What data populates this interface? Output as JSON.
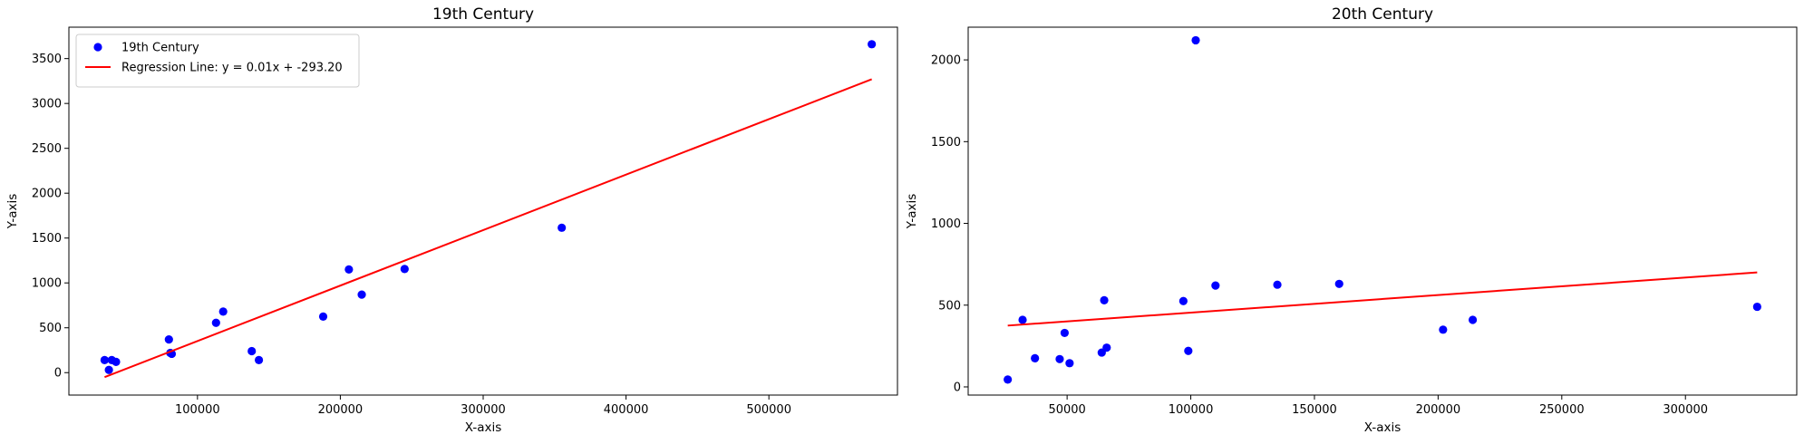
{
  "chart_data": [
    {
      "type": "scatter",
      "title": "19th Century",
      "xlabel": "X-axis",
      "ylabel": "Y-axis",
      "xlim": [
        10000,
        590000
      ],
      "ylim": [
        -250,
        3850
      ],
      "xticks": [
        100000,
        200000,
        300000,
        400000,
        500000
      ],
      "yticks": [
        0,
        500,
        1000,
        1500,
        2000,
        2500,
        3000,
        3500
      ],
      "grid": false,
      "legend_position": "top-left",
      "series": [
        {
          "name": "19th Century",
          "kind": "scatter",
          "color": "#0000ff",
          "points": [
            [
              35000,
              140
            ],
            [
              40000,
              140
            ],
            [
              43000,
              120
            ],
            [
              38000,
              30
            ],
            [
              80000,
              370
            ],
            [
              81000,
              220
            ],
            [
              82000,
              210
            ],
            [
              113000,
              555
            ],
            [
              118000,
              680
            ],
            [
              138000,
              240
            ],
            [
              143000,
              140
            ],
            [
              188000,
              625
            ],
            [
              206000,
              1150
            ],
            [
              215000,
              870
            ],
            [
              245000,
              1155
            ],
            [
              355000,
              1615
            ],
            [
              572000,
              3660
            ]
          ]
        },
        {
          "name": "Regression Line: y = 0.01x + -293.20",
          "kind": "line",
          "color": "#ff0000",
          "points": [
            [
              35000,
              -50
            ],
            [
              572000,
              3270
            ]
          ]
        }
      ]
    },
    {
      "type": "scatter",
      "title": "20th Century",
      "xlabel": "X-axis",
      "ylabel": "Y-axis",
      "xlim": [
        10000,
        345000
      ],
      "ylim": [
        -50,
        2200
      ],
      "xticks": [
        50000,
        100000,
        150000,
        200000,
        250000,
        300000
      ],
      "yticks": [
        0,
        500,
        1000,
        1500,
        2000
      ],
      "grid": false,
      "series": [
        {
          "name": "",
          "kind": "scatter",
          "color": "#0000ff",
          "points": [
            [
              26000,
              45
            ],
            [
              32000,
              410
            ],
            [
              37000,
              175
            ],
            [
              47000,
              170
            ],
            [
              49000,
              330
            ],
            [
              51000,
              145
            ],
            [
              64000,
              210
            ],
            [
              65000,
              530
            ],
            [
              66000,
              240
            ],
            [
              97000,
              525
            ],
            [
              99000,
              220
            ],
            [
              102000,
              2120
            ],
            [
              110000,
              620
            ],
            [
              135000,
              625
            ],
            [
              160000,
              630
            ],
            [
              202000,
              350
            ],
            [
              214000,
              410
            ],
            [
              329000,
              490
            ]
          ]
        },
        {
          "name": "",
          "kind": "line",
          "color": "#ff0000",
          "points": [
            [
              26000,
              375
            ],
            [
              329000,
              700
            ]
          ]
        }
      ]
    }
  ]
}
